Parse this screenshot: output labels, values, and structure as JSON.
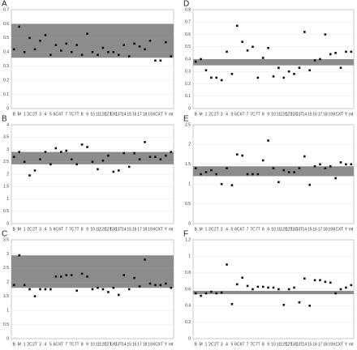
{
  "chart_data": [
    {
      "type": "scatter",
      "title": "A",
      "categories": [
        "B",
        "M",
        "1",
        "2C",
        "2T",
        "3",
        "4",
        "5",
        "6C",
        "6T",
        "7",
        "7C",
        "7T",
        "8",
        "9",
        "10",
        "11",
        "12C",
        "12T",
        "13C",
        "13T",
        "14",
        "15",
        "16",
        "17",
        "18",
        "19",
        "XC",
        "XT",
        "Y",
        "mt"
      ],
      "values": [
        0.42,
        0.58,
        0.4,
        0.5,
        0.42,
        0.48,
        0.52,
        0.38,
        0.45,
        0.41,
        0.46,
        0.4,
        0.45,
        0.38,
        0.53,
        0.4,
        0.38,
        0.43,
        0.4,
        0.4,
        0.38,
        0.45,
        0.37,
        0.46,
        0.44,
        0.42,
        0.48,
        0.34,
        0.34,
        0.47,
        0.37
      ],
      "band": [
        0.36,
        0.6
      ],
      "band_color": "#8c8c8c",
      "color": "#111111",
      "ylim": [
        0,
        0.7
      ],
      "yticks": [
        0,
        0.1,
        0.2,
        0.3,
        0.4,
        0.5,
        0.6,
        0.7
      ],
      "grid": true
    },
    {
      "type": "scatter",
      "title": "D",
      "categories": [
        "B",
        "M",
        "1",
        "2C",
        "2T",
        "3",
        "4",
        "5",
        "6C",
        "6T",
        "7",
        "7C",
        "7T",
        "8",
        "9",
        "10",
        "11",
        "12C",
        "12T",
        "13C",
        "13T",
        "14",
        "15",
        "16",
        "17",
        "18",
        "19",
        "XC",
        "XT",
        "Y",
        "mt"
      ],
      "values": [
        0.38,
        0.4,
        0.31,
        0.25,
        0.25,
        0.23,
        0.46,
        0.28,
        0.67,
        0.54,
        0.47,
        0.5,
        0.25,
        0.41,
        0.49,
        0.26,
        0.33,
        0.25,
        0.3,
        0.28,
        0.33,
        0.62,
        0.31,
        0.39,
        0.4,
        0.6,
        0.44,
        0.45,
        0.33,
        0.46,
        0.46
      ],
      "band": [
        0.35,
        0.4
      ],
      "band_color": "#8c8c8c",
      "color": "#111111",
      "ylim": [
        0,
        0.8
      ],
      "yticks": [
        0,
        0.1,
        0.2,
        0.3,
        0.4,
        0.5,
        0.6,
        0.7,
        0.8
      ],
      "grid": true
    },
    {
      "type": "scatter",
      "title": "B",
      "categories": [
        "B",
        "M",
        "1",
        "2C",
        "2T",
        "3",
        "4",
        "5",
        "6C",
        "6T",
        "7",
        "7C",
        "7T",
        "8",
        "9",
        "10",
        "11",
        "12C",
        "12T",
        "13C",
        "13T",
        "14",
        "15",
        "16",
        "17",
        "18",
        "19",
        "XC",
        "XT",
        "Y",
        "mt"
      ],
      "values": [
        2.7,
        2.9,
        2.5,
        1.95,
        2.15,
        2.6,
        2.9,
        2.4,
        3.05,
        2.9,
        2.95,
        2.6,
        2.4,
        3.2,
        3.1,
        2.5,
        2.2,
        2.55,
        2.75,
        2.1,
        2.15,
        2.85,
        2.3,
        2.85,
        2.6,
        3.3,
        2.7,
        2.7,
        2.6,
        2.75,
        2.9
      ],
      "band": [
        2.4,
        2.9
      ],
      "band_color": "#8c8c8c",
      "color": "#111111",
      "ylim": [
        0,
        4
      ],
      "yticks": [
        0,
        0.5,
        1,
        1.5,
        2,
        2.5,
        3,
        3.5,
        4
      ],
      "grid": true
    },
    {
      "type": "scatter",
      "title": "E",
      "categories": [
        "B",
        "M",
        "1",
        "2C",
        "2T",
        "3",
        "4",
        "5",
        "6C",
        "6T",
        "7",
        "7C",
        "7T",
        "8",
        "9",
        "10",
        "11",
        "12C",
        "12T",
        "13C",
        "13T",
        "14",
        "15",
        "16",
        "17",
        "18",
        "19",
        "XC",
        "XT",
        "Y",
        "mt"
      ],
      "values": [
        1.4,
        1.25,
        1.3,
        1.35,
        1.25,
        1.0,
        1.4,
        0.97,
        1.75,
        1.72,
        1.25,
        1.25,
        1.25,
        1.6,
        2.1,
        1.4,
        1.05,
        1.35,
        1.3,
        1.3,
        1.4,
        1.7,
        0.98,
        1.45,
        1.5,
        1.4,
        1.45,
        1.15,
        1.55,
        1.5,
        1.5
      ],
      "band": [
        1.2,
        1.45
      ],
      "band_color": "#8c8c8c",
      "color": "#111111",
      "ylim": [
        0,
        2.5
      ],
      "yticks": [
        0,
        0.5,
        1,
        1.5,
        2,
        2.5
      ],
      "grid": true
    },
    {
      "type": "scatter",
      "title": "C",
      "categories": [
        "B",
        "M",
        "1",
        "2C",
        "2T",
        "3",
        "4",
        "5",
        "6C",
        "6T",
        "7",
        "7C",
        "7T",
        "8",
        "9",
        "10",
        "11",
        "12C",
        "12T",
        "13C",
        "13T",
        "14",
        "15",
        "16",
        "17",
        "18",
        "19",
        "XC",
        "XT",
        "Y",
        "mt"
      ],
      "values": [
        1.9,
        2.95,
        1.9,
        1.75,
        1.5,
        1.75,
        1.75,
        1.75,
        2.2,
        2.2,
        2.25,
        2.25,
        1.7,
        2.3,
        2.2,
        1.75,
        1.8,
        1.75,
        1.65,
        1.8,
        1.55,
        2.25,
        1.75,
        2.15,
        1.85,
        2.8,
        1.95,
        1.9,
        1.9,
        1.95,
        1.8
      ],
      "band": [
        1.8,
        2.95
      ],
      "band_color": "#8c8c8c",
      "color": "#111111",
      "ylim": [
        0,
        3.5
      ],
      "yticks": [
        0,
        0.5,
        1,
        1.5,
        2,
        2.5,
        3,
        3.5
      ],
      "grid": true
    },
    {
      "type": "scatter",
      "title": "F",
      "categories": [
        "B",
        "M",
        "1",
        "2C",
        "2T",
        "3",
        "4",
        "5",
        "6C",
        "6T",
        "7",
        "7C",
        "7T",
        "8",
        "9",
        "10",
        "11",
        "12C",
        "12T",
        "13C",
        "13T",
        "14",
        "15",
        "16",
        "17",
        "18",
        "19",
        "XC",
        "XT",
        "Y",
        "mt"
      ],
      "values": [
        0.55,
        0.52,
        0.55,
        0.57,
        0.55,
        0.56,
        0.9,
        0.42,
        0.66,
        0.74,
        0.64,
        0.6,
        0.63,
        0.63,
        0.62,
        0.62,
        0.6,
        0.41,
        0.6,
        0.62,
        0.44,
        0.73,
        0.4,
        0.71,
        0.71,
        0.69,
        0.68,
        0.55,
        0.6,
        0.62,
        0.65
      ],
      "band": [
        0.54,
        0.58
      ],
      "band_color": "#8c8c8c",
      "color": "#111111",
      "ylim": [
        0,
        1.2
      ],
      "yticks": [
        0,
        0.2,
        0.4,
        0.6,
        0.8,
        1,
        1.2
      ],
      "grid": true
    }
  ]
}
